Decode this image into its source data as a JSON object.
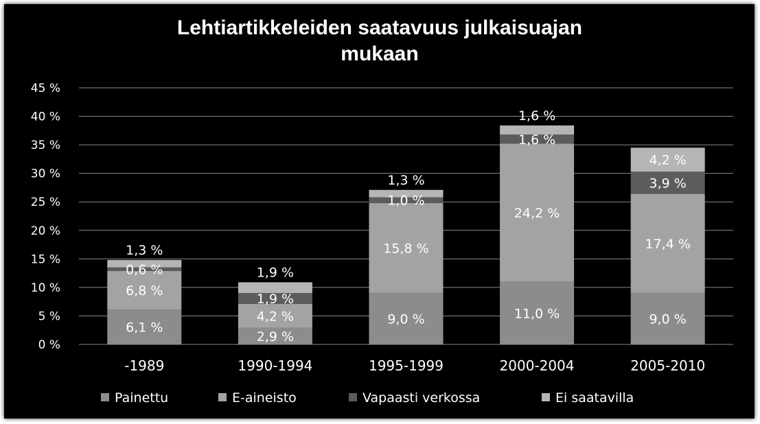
{
  "chart_data": {
    "type": "bar",
    "stacked": true,
    "title": "Lehtiartikkeleiden saatavuus julkaisuajan mukaan",
    "title_lines": [
      "Lehtiartikkeleiden saatavuus julkaisuajan",
      "mukaan"
    ],
    "categories": [
      "-1989",
      "1990-1994",
      "1995-1999",
      "2000-2004",
      "2005-2010"
    ],
    "series": [
      {
        "name": "Painettu",
        "color": "#8c8c8c",
        "values": [
          6.1,
          2.9,
          9.0,
          11.0,
          9.0
        ],
        "labels": [
          "6,1 %",
          "2,9 %",
          "9,0 %",
          "11,0 %",
          "9,0 %"
        ]
      },
      {
        "name": "E-aineisto",
        "color": "#a3a3a3",
        "values": [
          6.8,
          4.2,
          15.8,
          24.2,
          17.4
        ],
        "labels": [
          "6,8 %",
          "4,2 %",
          "15,8 %",
          "24,2 %",
          "17,4 %"
        ]
      },
      {
        "name": "Vapaasti verkossa",
        "color": "#5c5c5c",
        "values": [
          0.6,
          1.9,
          1.0,
          1.6,
          3.9
        ],
        "labels": [
          "0,6 %",
          "1,9 %",
          "1,0 %",
          "1,6 %",
          "3,9 %"
        ]
      },
      {
        "name": "Ei saatavilla",
        "color": "#b5b5b5",
        "values": [
          1.3,
          1.9,
          1.3,
          1.6,
          4.2
        ],
        "labels": [
          "1,3 %",
          "1,9 %",
          "1,3 %",
          "1,6 %",
          "4,2 %"
        ]
      }
    ],
    "ylim": [
      0,
      45
    ],
    "yticks": [
      0,
      5,
      10,
      15,
      20,
      25,
      30,
      35,
      40,
      45
    ],
    "ytick_labels": [
      "0 %",
      "5 %",
      "10 %",
      "15 %",
      "20 %",
      "25 %",
      "30 %",
      "35 %",
      "40 %",
      "45 %"
    ],
    "grid": true,
    "legend_position": "bottom"
  }
}
